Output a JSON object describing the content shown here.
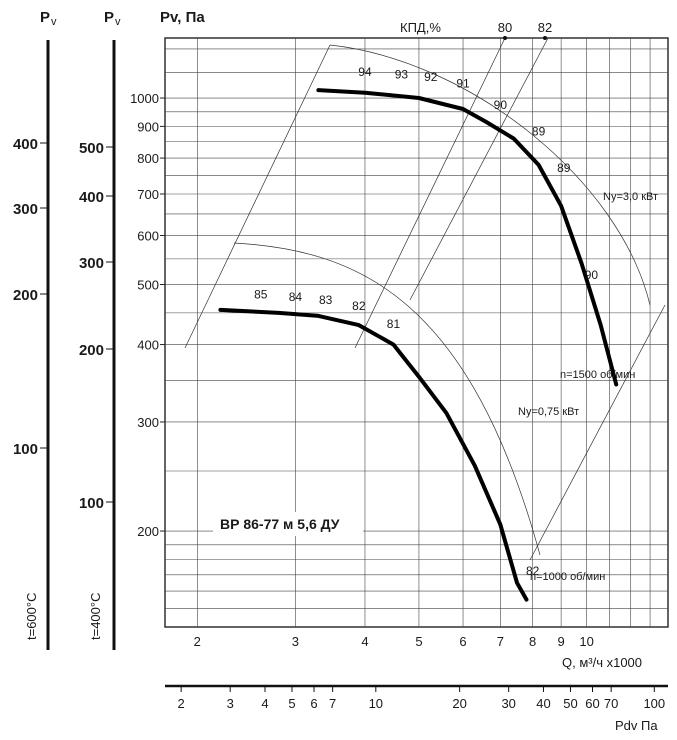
{
  "chart_data": {
    "type": "line",
    "title": "ВР 86-77 м 5,6 ДУ",
    "log_scale": true,
    "grid": true,
    "xlabel": "Q, м³/ч x1000",
    "ylabel": "Pv, Па",
    "xlim": [
      1.75,
      14
    ],
    "ylim": [
      140,
      1250
    ],
    "x_ticks": [
      "2",
      "3",
      "4",
      "5",
      "6",
      "7",
      "8",
      "9",
      "10"
    ],
    "x_tick_values": [
      2,
      3,
      4,
      5,
      6,
      7,
      8,
      9,
      10
    ],
    "y_ticks": [
      "200",
      "300",
      "400",
      "500",
      "600",
      "700",
      "800",
      "900",
      "1000"
    ],
    "y_tick_values": [
      200,
      300,
      400,
      500,
      600,
      700,
      800,
      900,
      1000
    ],
    "pdv_label": "Pdv Па",
    "pdv_ticks": [
      "2",
      "3",
      "4",
      "5",
      "6",
      "7",
      "10",
      "20",
      "30",
      "40",
      "50",
      "60",
      "70",
      "100"
    ],
    "pdv_tick_values": [
      2,
      3,
      4,
      5,
      6,
      7,
      10,
      20,
      30,
      40,
      50,
      60,
      70,
      100
    ],
    "side_scale_600": {
      "header": "P",
      "sub": "v",
      "label": "t=600°C",
      "ticks": [
        "400",
        "300",
        "200",
        "100"
      ],
      "tick_values": [
        400,
        300,
        200,
        100
      ]
    },
    "side_scale_400": {
      "header": "P",
      "sub": "v",
      "label": "t=400°C",
      "ticks": [
        "500",
        "400",
        "300",
        "200",
        "100"
      ],
      "tick_values": [
        500,
        400,
        300,
        200,
        100
      ]
    },
    "efficiency_header": "КПД,%",
    "series": [
      {
        "name": "n=1500 об/мин",
        "power_label": "Nу=3,0 кВт",
        "x": [
          3.3,
          4.0,
          5.0,
          6.0,
          6.6,
          7.4,
          8.2,
          9.0,
          9.8,
          10.6,
          11.3
        ],
        "y": [
          1030,
          1020,
          1000,
          960,
          915,
          860,
          780,
          670,
          540,
          430,
          345
        ],
        "efficiency_labels": [
          {
            "text": "94",
            "x": 4.0,
            "y": 1085
          },
          {
            "text": "93",
            "x": 4.65,
            "y": 1075
          },
          {
            "text": "92",
            "x": 5.25,
            "y": 1065
          },
          {
            "text": "91",
            "x": 6.0,
            "y": 1040
          },
          {
            "text": "90",
            "x": 7.0,
            "y": 960
          },
          {
            "text": "89",
            "x": 8.2,
            "y": 870
          },
          {
            "text": "89",
            "x": 9.1,
            "y": 760
          },
          {
            "text": "90",
            "x": 10.2,
            "y": 510
          }
        ]
      },
      {
        "name": "n=1000 об/мин",
        "power_label": "Nу=0,75 кВт",
        "x": [
          2.2,
          2.8,
          3.3,
          3.9,
          4.5,
          5.0,
          5.6,
          6.3,
          7.0,
          7.5,
          7.8
        ],
        "y": [
          455,
          450,
          445,
          430,
          400,
          355,
          310,
          255,
          205,
          165,
          155
        ],
        "efficiency_labels": [
          {
            "text": "85",
            "x": 2.6,
            "y": 475
          },
          {
            "text": "84",
            "x": 3.0,
            "y": 470
          },
          {
            "text": "83",
            "x": 3.4,
            "y": 465
          },
          {
            "text": "82",
            "x": 3.9,
            "y": 455
          },
          {
            "text": "81",
            "x": 4.5,
            "y": 425
          },
          {
            "text": "82",
            "x": 8.0,
            "y": 170
          }
        ]
      }
    ],
    "efficiency_lines": [
      {
        "label": "80",
        "at_top_x": 7.15
      },
      {
        "label": "82",
        "at_top_x": 8.4
      }
    ]
  }
}
